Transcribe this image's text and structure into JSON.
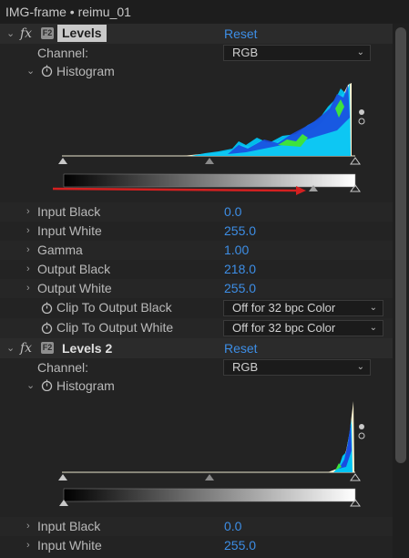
{
  "window": {
    "title": "IMG-frame • reimu_01"
  },
  "effects": [
    {
      "name": "Levels",
      "reset_label": "Reset",
      "channel_label": "Channel:",
      "channel_value": "RGB",
      "histogram_label": "Histogram",
      "properties": [
        {
          "label": "Input Black",
          "value": "0.0"
        },
        {
          "label": "Input White",
          "value": "255.0"
        },
        {
          "label": "Gamma",
          "value": "1.00"
        },
        {
          "label": "Output Black",
          "value": "218.0"
        },
        {
          "label": "Output White",
          "value": "255.0"
        }
      ],
      "clip_black_label": "Clip To Output Black",
      "clip_black_value": "Off for 32 bpc Color",
      "clip_white_label": "Clip To Output White",
      "clip_white_value": "Off for 32 bpc Color"
    },
    {
      "name": "Levels 2",
      "reset_label": "Reset",
      "channel_label": "Channel:",
      "channel_value": "RGB",
      "histogram_label": "Histogram",
      "properties": [
        {
          "label": "Input Black",
          "value": "0.0"
        },
        {
          "label": "Input White",
          "value": "255.0"
        }
      ]
    }
  ],
  "colors": {
    "accent_blue": "#3d8ee6",
    "annotation_arrow": "#d42020",
    "histogram_fill": "#fff8d8",
    "histogram_cyan": "#00c8ff",
    "histogram_blue": "#1040d8",
    "histogram_green": "#40e040"
  }
}
